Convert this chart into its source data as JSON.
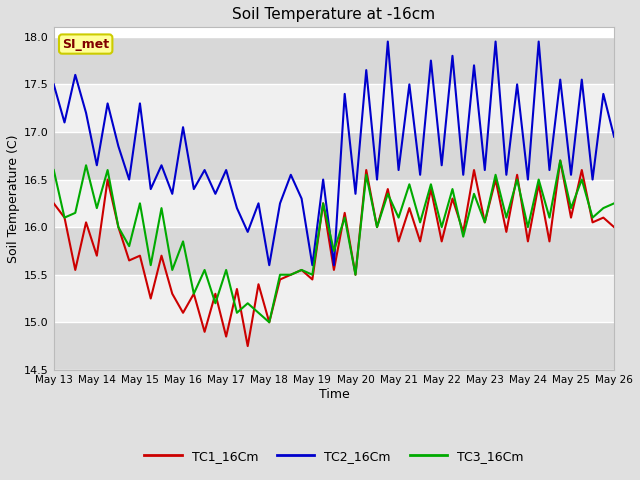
{
  "title": "Soil Temperature at -16cm",
  "xlabel": "Time",
  "ylabel": "Soil Temperature (C)",
  "ylim": [
    14.5,
    18.1
  ],
  "xlim": [
    0,
    13
  ],
  "x_tick_labels": [
    "May 13",
    "May 14",
    "May 15",
    "May 16",
    "May 17",
    "May 18",
    "May 19",
    "May 20",
    "May 21",
    "May 22",
    "May 23",
    "May 24",
    "May 25",
    "May 26"
  ],
  "yticks": [
    14.5,
    15.0,
    15.5,
    16.0,
    16.5,
    17.0,
    17.5,
    18.0
  ],
  "fig_bg_color": "#e0e0e0",
  "plot_bg_color": "#ffffff",
  "stripe_dark": "#d8d8d8",
  "stripe_light": "#f0f0f0",
  "grid_color": "#ffffff",
  "annotation_text": "SI_met",
  "annotation_box_color": "#ffff99",
  "annotation_text_color": "#800000",
  "annotation_edge_color": "#cccc00",
  "line_colors": {
    "TC1_16Cm": "#cc0000",
    "TC2_16Cm": "#0000cc",
    "TC3_16Cm": "#00aa00"
  },
  "line_width": 1.5,
  "tc1_x": [
    0,
    0.25,
    0.5,
    0.75,
    1.0,
    1.25,
    1.5,
    1.75,
    2.0,
    2.25,
    2.5,
    2.75,
    3.0,
    3.25,
    3.5,
    3.75,
    4.0,
    4.25,
    4.5,
    4.75,
    5.0,
    5.25,
    5.5,
    5.75,
    6.0,
    6.25,
    6.5,
    6.75,
    7.0,
    7.25,
    7.5,
    7.75,
    8.0,
    8.25,
    8.5,
    8.75,
    9.0,
    9.25,
    9.5,
    9.75,
    10.0,
    10.25,
    10.5,
    10.75,
    11.0,
    11.25,
    11.5,
    11.75,
    12.0,
    12.25,
    12.5,
    12.75,
    13.0
  ],
  "tc1_y": [
    16.25,
    16.1,
    15.55,
    16.05,
    15.7,
    16.5,
    16.0,
    15.65,
    15.7,
    15.25,
    15.7,
    15.3,
    15.1,
    15.3,
    14.9,
    15.3,
    14.85,
    15.35,
    14.75,
    15.4,
    15.0,
    15.45,
    15.5,
    15.55,
    15.45,
    16.25,
    15.55,
    16.15,
    15.5,
    16.6,
    16.0,
    16.4,
    15.85,
    16.2,
    15.85,
    16.4,
    15.85,
    16.3,
    15.95,
    16.6,
    16.05,
    16.5,
    15.95,
    16.55,
    15.85,
    16.45,
    15.85,
    16.7,
    16.1,
    16.6,
    16.05,
    16.1,
    16.0
  ],
  "tc2_x": [
    0,
    0.25,
    0.5,
    0.75,
    1.0,
    1.25,
    1.5,
    1.75,
    2.0,
    2.25,
    2.5,
    2.75,
    3.0,
    3.25,
    3.5,
    3.75,
    4.0,
    4.25,
    4.5,
    4.75,
    5.0,
    5.25,
    5.5,
    5.75,
    6.0,
    6.25,
    6.5,
    6.75,
    7.0,
    7.25,
    7.5,
    7.75,
    8.0,
    8.25,
    8.5,
    8.75,
    9.0,
    9.25,
    9.5,
    9.75,
    10.0,
    10.25,
    10.5,
    10.75,
    11.0,
    11.25,
    11.5,
    11.75,
    12.0,
    12.25,
    12.5,
    12.75,
    13.0
  ],
  "tc2_y": [
    17.5,
    17.1,
    17.6,
    17.2,
    16.65,
    17.3,
    16.85,
    16.5,
    17.3,
    16.4,
    16.65,
    16.35,
    17.05,
    16.4,
    16.6,
    16.35,
    16.6,
    16.2,
    15.95,
    16.25,
    15.6,
    16.25,
    16.55,
    16.3,
    15.6,
    16.5,
    15.6,
    17.4,
    16.35,
    17.65,
    16.5,
    17.95,
    16.6,
    17.5,
    16.55,
    17.75,
    16.65,
    17.8,
    16.55,
    17.7,
    16.6,
    17.95,
    16.55,
    17.5,
    16.5,
    17.95,
    16.6,
    17.55,
    16.55,
    17.55,
    16.5,
    17.4,
    16.95
  ],
  "tc3_x": [
    0,
    0.25,
    0.5,
    0.75,
    1.0,
    1.25,
    1.5,
    1.75,
    2.0,
    2.25,
    2.5,
    2.75,
    3.0,
    3.25,
    3.5,
    3.75,
    4.0,
    4.25,
    4.5,
    4.75,
    5.0,
    5.25,
    5.5,
    5.75,
    6.0,
    6.25,
    6.5,
    6.75,
    7.0,
    7.25,
    7.5,
    7.75,
    8.0,
    8.25,
    8.5,
    8.75,
    9.0,
    9.25,
    9.5,
    9.75,
    10.0,
    10.25,
    10.5,
    10.75,
    11.0,
    11.25,
    11.5,
    11.75,
    12.0,
    12.25,
    12.5,
    12.75,
    13.0
  ],
  "tc3_y": [
    16.6,
    16.1,
    16.15,
    16.65,
    16.2,
    16.6,
    16.0,
    15.8,
    16.25,
    15.6,
    16.2,
    15.55,
    15.85,
    15.3,
    15.55,
    15.2,
    15.55,
    15.1,
    15.2,
    15.1,
    15.0,
    15.5,
    15.5,
    15.55,
    15.5,
    16.25,
    15.75,
    16.1,
    15.5,
    16.55,
    16.0,
    16.35,
    16.1,
    16.45,
    16.05,
    16.45,
    16.0,
    16.4,
    15.9,
    16.35,
    16.05,
    16.55,
    16.1,
    16.5,
    16.0,
    16.5,
    16.1,
    16.7,
    16.2,
    16.5,
    16.1,
    16.2,
    16.25
  ]
}
